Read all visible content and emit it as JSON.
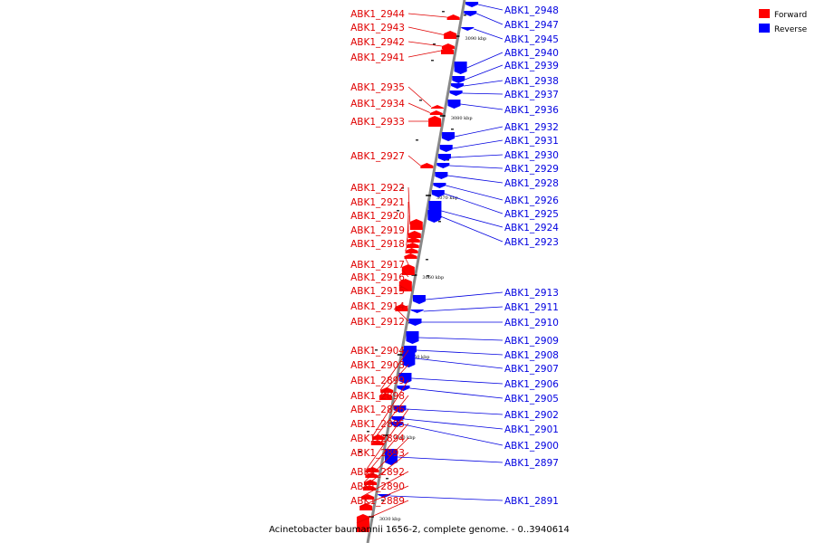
{
  "caption": "Acinetobacter baumannii 1656-2, complete genome. - 0..3940614",
  "legend": [
    {
      "label": "Forward",
      "color": "#ff0000"
    },
    {
      "label": "Reverse",
      "color": "#0000ff"
    }
  ],
  "ticks": [
    "3090 kbp",
    "3080 kbp",
    "3070 kbp",
    "3060 kbp",
    "3050 kbp",
    "3040 kbp",
    "3030 kbp"
  ],
  "forward_genes": [
    "ABK1_2944",
    "ABK1_2943",
    "ABK1_2942",
    "ABK1_2941",
    "ABK1_2935",
    "ABK1_2934",
    "ABK1_2933",
    "ABK1_2927",
    "ABK1_2922",
    "ABK1_2921",
    "ABK1_2920",
    "ABK1_2919",
    "ABK1_2918",
    "ABK1_2917",
    "ABK1_2916",
    "ABK1_2915",
    "ABK1_2914",
    "ABK1_2912",
    "ABK1_2904",
    "ABK1_2903",
    "ABK1_2899",
    "ABK1_2898",
    "ABK1_2896",
    "ABK1_2895",
    "ABK1_2894",
    "ABK1_2893",
    "ABK1_2892",
    "ABK1_2890",
    "ABK1_2889"
  ],
  "reverse_genes": [
    "ABK1_2948",
    "ABK1_2947",
    "ABK1_2945",
    "ABK1_2940",
    "ABK1_2939",
    "ABK1_2938",
    "ABK1_2937",
    "ABK1_2936",
    "ABK1_2932",
    "ABK1_2931",
    "ABK1_2930",
    "ABK1_2929",
    "ABK1_2928",
    "ABK1_2926",
    "ABK1_2925",
    "ABK1_2924",
    "ABK1_2923",
    "ABK1_2913",
    "ABK1_2911",
    "ABK1_2910",
    "ABK1_2909",
    "ABK1_2908",
    "ABK1_2907",
    "ABK1_2906",
    "ABK1_2905",
    "ABK1_2902",
    "ABK1_2901",
    "ABK1_2900",
    "ABK1_2897",
    "ABK1_2891"
  ]
}
